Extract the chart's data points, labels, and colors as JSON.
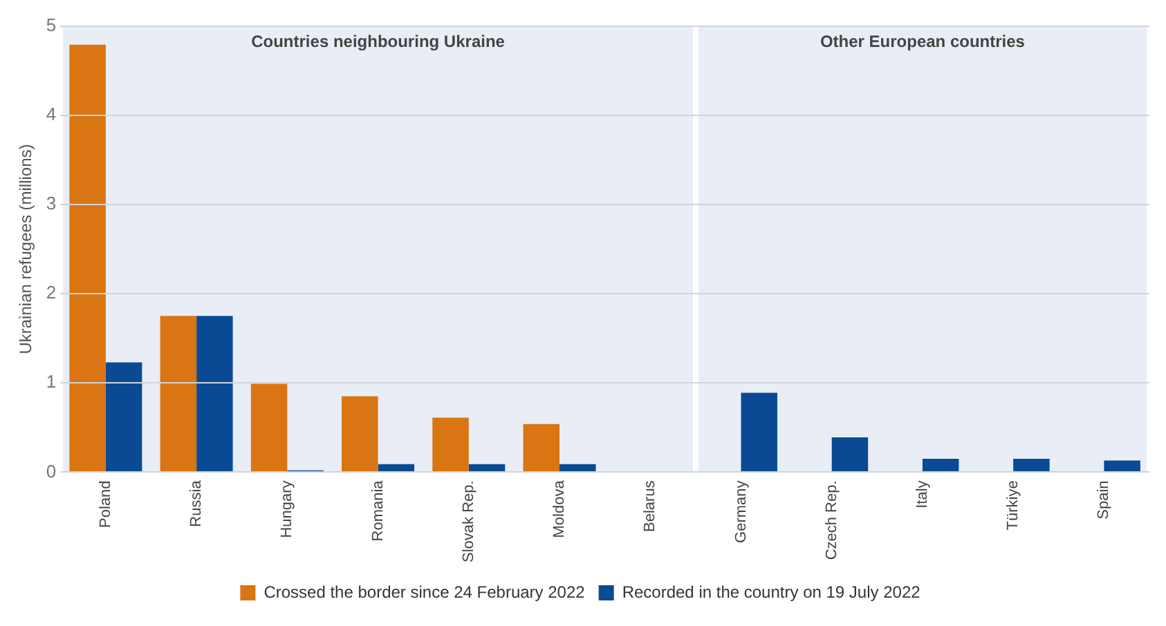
{
  "chart_data": {
    "type": "bar",
    "ylabel": "Ukrainian refugees (millions)",
    "categories": [
      "Poland",
      "Russia",
      "Hungary",
      "Romania",
      "Slovak Rep.",
      "Moldova",
      "Belarus",
      "Germany",
      "Czech Rep.",
      "Italy",
      "Türkiye",
      "Spain"
    ],
    "series": [
      {
        "name": "Crossed the border since 24 February 2022",
        "color": "#d97512",
        "values": [
          4.79,
          1.75,
          0.99,
          0.85,
          0.61,
          0.54,
          null,
          null,
          null,
          null,
          null,
          null
        ]
      },
      {
        "name": "Recorded in the country on 19 July 2022",
        "color": "#0a4a94",
        "values": [
          1.23,
          1.75,
          0.02,
          0.09,
          0.09,
          0.09,
          null,
          0.89,
          0.39,
          0.15,
          0.15,
          0.13
        ]
      }
    ],
    "bands": [
      {
        "axis": "x",
        "from": "Poland",
        "to": "Belarus",
        "label": "Countries neighbouring Ukraine",
        "color": "#e9edf5"
      },
      {
        "axis": "x",
        "from": "Germany",
        "to": "Spain",
        "label": "Other European countries",
        "color": "#e9edf5"
      }
    ],
    "ylim": [
      0,
      5
    ],
    "yticks": [
      0,
      1,
      2,
      3,
      4,
      5
    ],
    "grid": "y",
    "legend": "bottom"
  }
}
